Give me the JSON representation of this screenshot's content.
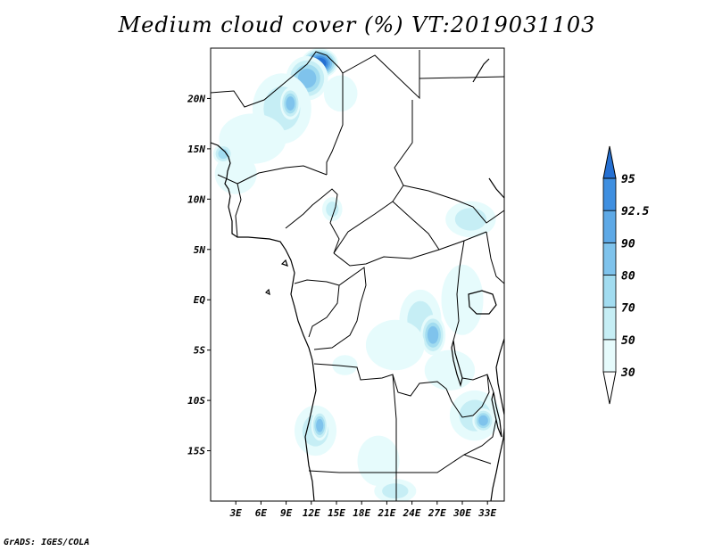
{
  "title": "Medium cloud cover (%) VT:2019031103",
  "credit": "GrADS: IGES/COLA",
  "map": {
    "lon_range": [
      0,
      35
    ],
    "lat_range": [
      -20,
      25
    ],
    "lat_ticks": [
      {
        "value": 20,
        "label": "20N"
      },
      {
        "value": 15,
        "label": "15N"
      },
      {
        "value": 10,
        "label": "10N"
      },
      {
        "value": 5,
        "label": "5N"
      },
      {
        "value": 0,
        "label": "EQ"
      },
      {
        "value": -5,
        "label": "5S"
      },
      {
        "value": -10,
        "label": "10S"
      },
      {
        "value": -15,
        "label": "15S"
      }
    ],
    "lon_ticks": [
      {
        "value": 3,
        "label": "3E"
      },
      {
        "value": 6,
        "label": "6E"
      },
      {
        "value": 9,
        "label": "9E"
      },
      {
        "value": 12,
        "label": "12E"
      },
      {
        "value": 15,
        "label": "15E"
      },
      {
        "value": 18,
        "label": "18E"
      },
      {
        "value": 21,
        "label": "21E"
      },
      {
        "value": 24,
        "label": "24E"
      },
      {
        "value": 27,
        "label": "27E"
      },
      {
        "value": 30,
        "label": "30E"
      },
      {
        "value": 33,
        "label": "33E"
      }
    ]
  },
  "colorbar": {
    "levels": [
      {
        "label": "30",
        "color": "#e6fbfc"
      },
      {
        "label": "50",
        "color": "#c6eef5"
      },
      {
        "label": "70",
        "color": "#a2dcf0"
      },
      {
        "label": "80",
        "color": "#7fc3ec"
      },
      {
        "label": "90",
        "color": "#5ea9e6"
      },
      {
        "label": "92.5",
        "color": "#3f8fe0"
      },
      {
        "label": "95",
        "color": "#2570d2"
      }
    ],
    "below_color": "#ffffff"
  },
  "cloud_regions": [
    {
      "lon": 13,
      "lat": 23.5,
      "rx": 2.2,
      "ry": 1.5,
      "level": 6
    },
    {
      "lon": 11.5,
      "lat": 22,
      "rx": 2.5,
      "ry": 2.2,
      "level": 3
    },
    {
      "lon": 8.5,
      "lat": 19,
      "rx": 3.5,
      "ry": 3.5,
      "level": 1
    },
    {
      "lon": 9.5,
      "lat": 19.5,
      "rx": 1.2,
      "ry": 1.6,
      "level": 3
    },
    {
      "lon": 5,
      "lat": 16,
      "rx": 4,
      "ry": 2.5,
      "level": 0
    },
    {
      "lon": 3,
      "lat": 12.5,
      "rx": 2.5,
      "ry": 2,
      "level": 0
    },
    {
      "lon": 1.5,
      "lat": 14.5,
      "rx": 1.2,
      "ry": 1,
      "level": 2
    },
    {
      "lon": 15.5,
      "lat": 20.5,
      "rx": 2,
      "ry": 1.8,
      "level": 0
    },
    {
      "lon": 14.5,
      "lat": 9,
      "rx": 1.2,
      "ry": 1.2,
      "level": 1
    },
    {
      "lon": 31,
      "lat": 8,
      "rx": 3,
      "ry": 1.8,
      "level": 1
    },
    {
      "lon": 25,
      "lat": -2,
      "rx": 2.5,
      "ry": 3,
      "level": 1
    },
    {
      "lon": 26.5,
      "lat": -3.5,
      "rx": 1.5,
      "ry": 2,
      "level": 3
    },
    {
      "lon": 22,
      "lat": -4.5,
      "rx": 3.5,
      "ry": 2.5,
      "level": 0
    },
    {
      "lon": 30,
      "lat": 0,
      "rx": 2.5,
      "ry": 3.5,
      "level": 0
    },
    {
      "lon": 28.5,
      "lat": -7,
      "rx": 3,
      "ry": 2,
      "level": 0
    },
    {
      "lon": 31.5,
      "lat": -11.5,
      "rx": 3,
      "ry": 2.5,
      "level": 1
    },
    {
      "lon": 32.5,
      "lat": -12,
      "rx": 1.3,
      "ry": 1.2,
      "level": 3
    },
    {
      "lon": 12.5,
      "lat": -13,
      "rx": 2.5,
      "ry": 2.5,
      "level": 1
    },
    {
      "lon": 13,
      "lat": -12.5,
      "rx": 1,
      "ry": 1.5,
      "level": 3
    },
    {
      "lon": 20,
      "lat": -16,
      "rx": 2.5,
      "ry": 2.5,
      "level": 0
    },
    {
      "lon": 22,
      "lat": -19,
      "rx": 2.5,
      "ry": 1.2,
      "level": 1
    },
    {
      "lon": 16,
      "lat": -6.5,
      "rx": 1.5,
      "ry": 1,
      "level": 0
    }
  ]
}
